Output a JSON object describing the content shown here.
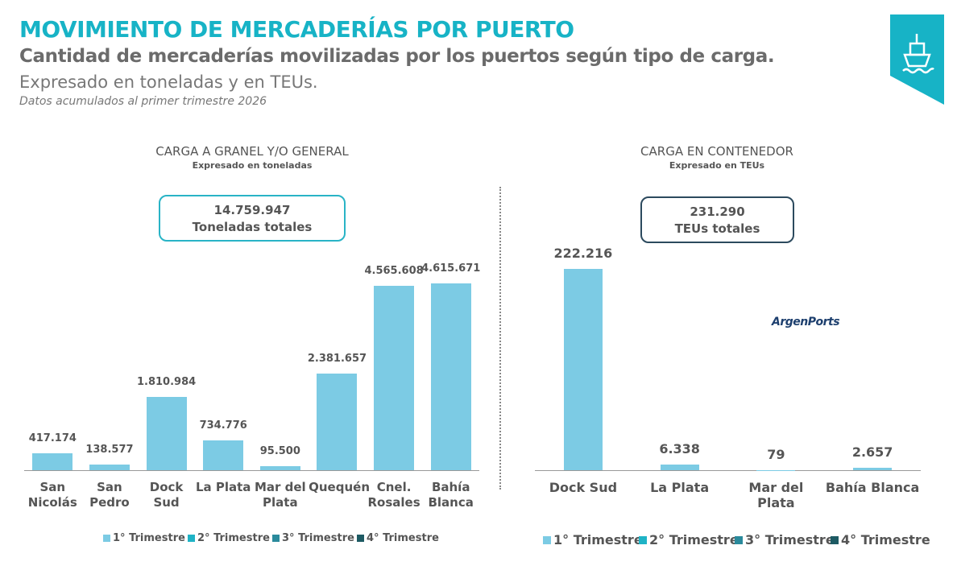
{
  "header": {
    "title": "MOVIMIENTO DE MERCADERÍAS POR PUERTO",
    "subtitle": "Cantidad de mercaderías movilizadas por los puertos según tipo de carga.",
    "description": "Expresado en toneladas y en TEUs.",
    "note": "Datos acumulados al primer trimestre 2026"
  },
  "watermark": "ArgenPorts",
  "chart_data": [
    {
      "type": "bar",
      "title": "CARGA A GRANEL Y/O GENERAL",
      "subtitle": "Expresado en toneladas",
      "total": "14.759.947",
      "total_caption": "Toneladas totales",
      "categories": [
        "San Nicolás",
        "San Pedro",
        "Dock Sud",
        "La Plata",
        "Mar del Plata",
        "Quequén",
        "Cnel. Rosales",
        "Bahía Blanca"
      ],
      "series": [
        {
          "name": "1° Trimestre",
          "color": "#7ccbe4",
          "values": [
            417174,
            138577,
            1810984,
            734776,
            95500,
            2381657,
            4565608,
            4615671
          ],
          "value_labels": [
            "417.174",
            "138.577",
            "1.810.984",
            "734.776",
            "95.500",
            "2.381.657",
            "4.565.608",
            "4.615.671"
          ]
        },
        {
          "name": "2° Trimestre",
          "color": "#1fb3c6",
          "values": [
            null,
            null,
            null,
            null,
            null,
            null,
            null,
            null
          ]
        },
        {
          "name": "3° Trimestre",
          "color": "#2a8a9c",
          "values": [
            null,
            null,
            null,
            null,
            null,
            null,
            null,
            null
          ]
        },
        {
          "name": "4° Trimestre",
          "color": "#1d5a63",
          "values": [
            null,
            null,
            null,
            null,
            null,
            null,
            null,
            null
          ]
        }
      ]
    },
    {
      "type": "bar",
      "title": "CARGA EN CONTENEDOR",
      "subtitle": "Expresado en TEUs",
      "total": "231.290",
      "total_caption": "TEUs totales",
      "categories": [
        "Dock Sud",
        "La Plata",
        "Mar del  Plata",
        "Bahía Blanca"
      ],
      "series": [
        {
          "name": "1° Trimestre",
          "color": "#7ccbe4",
          "values": [
            222216,
            6338,
            79,
            2657
          ],
          "value_labels": [
            "222.216",
            "6.338",
            "79",
            "2.657"
          ]
        },
        {
          "name": "2° Trimestre",
          "color": "#1fb3c6",
          "values": [
            null,
            null,
            null,
            null
          ]
        },
        {
          "name": "3° Trimestre",
          "color": "#2a8a9c",
          "values": [
            null,
            null,
            null,
            null
          ]
        },
        {
          "name": "4° Trimestre",
          "color": "#1d5a63",
          "values": [
            null,
            null,
            null,
            null
          ]
        }
      ]
    }
  ]
}
